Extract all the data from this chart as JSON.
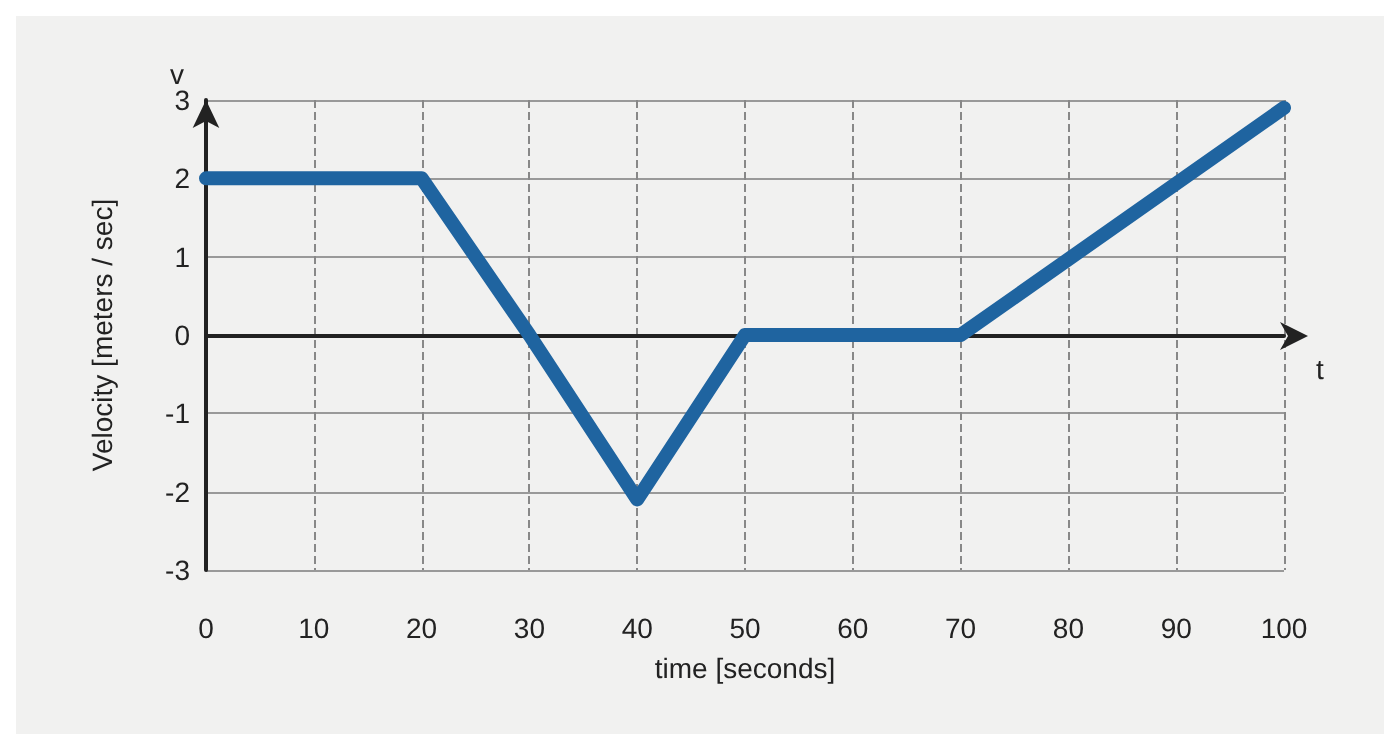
{
  "chart_data": {
    "type": "line",
    "xlabel": "time [seconds]",
    "ylabel": "Velocity [meters / sec]",
    "annotations": [
      "v",
      "t"
    ],
    "x": [
      0,
      20,
      30,
      40,
      50,
      70,
      100
    ],
    "series": [
      {
        "color": "#1f64a0",
        "values": [
          2,
          2,
          0,
          -2.1,
          0,
          0,
          2.9
        ]
      }
    ],
    "xlim": [
      0,
      100
    ],
    "xticks": [
      0,
      10,
      20,
      30,
      40,
      50,
      60,
      70,
      80,
      90,
      100
    ],
    "ylim": [
      -3,
      3
    ],
    "yticks": [
      -3,
      -2,
      -1,
      0,
      1,
      2,
      3
    ],
    "grid": true,
    "line_style": "solid"
  }
}
